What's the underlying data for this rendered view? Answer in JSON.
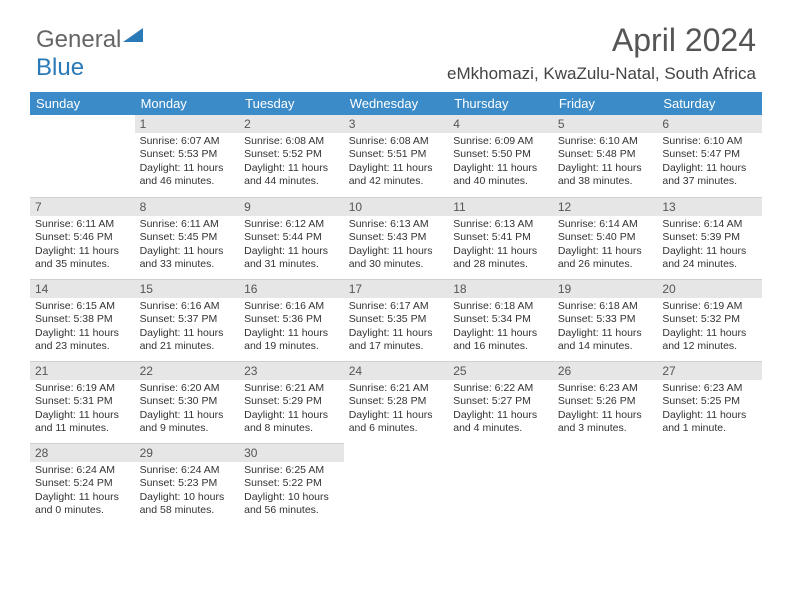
{
  "logo": {
    "text1": "General",
    "text2": "Blue"
  },
  "title": "April 2024",
  "location": "eMkhomazi, KwaZulu-Natal, South Africa",
  "weekday_headers": [
    "Sunday",
    "Monday",
    "Tuesday",
    "Wednesday",
    "Thursday",
    "Friday",
    "Saturday"
  ],
  "colors": {
    "header_bg": "#3b8bc9",
    "daynum_bg": "#e6e6e6",
    "logo_blue": "#2a7ab8"
  },
  "weeks": [
    [
      {
        "blank": true
      },
      {
        "n": "1",
        "sunrise": "Sunrise: 6:07 AM",
        "sunset": "Sunset: 5:53 PM",
        "daylight": "Daylight: 11 hours and 46 minutes."
      },
      {
        "n": "2",
        "sunrise": "Sunrise: 6:08 AM",
        "sunset": "Sunset: 5:52 PM",
        "daylight": "Daylight: 11 hours and 44 minutes."
      },
      {
        "n": "3",
        "sunrise": "Sunrise: 6:08 AM",
        "sunset": "Sunset: 5:51 PM",
        "daylight": "Daylight: 11 hours and 42 minutes."
      },
      {
        "n": "4",
        "sunrise": "Sunrise: 6:09 AM",
        "sunset": "Sunset: 5:50 PM",
        "daylight": "Daylight: 11 hours and 40 minutes."
      },
      {
        "n": "5",
        "sunrise": "Sunrise: 6:10 AM",
        "sunset": "Sunset: 5:48 PM",
        "daylight": "Daylight: 11 hours and 38 minutes."
      },
      {
        "n": "6",
        "sunrise": "Sunrise: 6:10 AM",
        "sunset": "Sunset: 5:47 PM",
        "daylight": "Daylight: 11 hours and 37 minutes."
      }
    ],
    [
      {
        "n": "7",
        "sunrise": "Sunrise: 6:11 AM",
        "sunset": "Sunset: 5:46 PM",
        "daylight": "Daylight: 11 hours and 35 minutes."
      },
      {
        "n": "8",
        "sunrise": "Sunrise: 6:11 AM",
        "sunset": "Sunset: 5:45 PM",
        "daylight": "Daylight: 11 hours and 33 minutes."
      },
      {
        "n": "9",
        "sunrise": "Sunrise: 6:12 AM",
        "sunset": "Sunset: 5:44 PM",
        "daylight": "Daylight: 11 hours and 31 minutes."
      },
      {
        "n": "10",
        "sunrise": "Sunrise: 6:13 AM",
        "sunset": "Sunset: 5:43 PM",
        "daylight": "Daylight: 11 hours and 30 minutes."
      },
      {
        "n": "11",
        "sunrise": "Sunrise: 6:13 AM",
        "sunset": "Sunset: 5:41 PM",
        "daylight": "Daylight: 11 hours and 28 minutes."
      },
      {
        "n": "12",
        "sunrise": "Sunrise: 6:14 AM",
        "sunset": "Sunset: 5:40 PM",
        "daylight": "Daylight: 11 hours and 26 minutes."
      },
      {
        "n": "13",
        "sunrise": "Sunrise: 6:14 AM",
        "sunset": "Sunset: 5:39 PM",
        "daylight": "Daylight: 11 hours and 24 minutes."
      }
    ],
    [
      {
        "n": "14",
        "sunrise": "Sunrise: 6:15 AM",
        "sunset": "Sunset: 5:38 PM",
        "daylight": "Daylight: 11 hours and 23 minutes."
      },
      {
        "n": "15",
        "sunrise": "Sunrise: 6:16 AM",
        "sunset": "Sunset: 5:37 PM",
        "daylight": "Daylight: 11 hours and 21 minutes."
      },
      {
        "n": "16",
        "sunrise": "Sunrise: 6:16 AM",
        "sunset": "Sunset: 5:36 PM",
        "daylight": "Daylight: 11 hours and 19 minutes."
      },
      {
        "n": "17",
        "sunrise": "Sunrise: 6:17 AM",
        "sunset": "Sunset: 5:35 PM",
        "daylight": "Daylight: 11 hours and 17 minutes."
      },
      {
        "n": "18",
        "sunrise": "Sunrise: 6:18 AM",
        "sunset": "Sunset: 5:34 PM",
        "daylight": "Daylight: 11 hours and 16 minutes."
      },
      {
        "n": "19",
        "sunrise": "Sunrise: 6:18 AM",
        "sunset": "Sunset: 5:33 PM",
        "daylight": "Daylight: 11 hours and 14 minutes."
      },
      {
        "n": "20",
        "sunrise": "Sunrise: 6:19 AM",
        "sunset": "Sunset: 5:32 PM",
        "daylight": "Daylight: 11 hours and 12 minutes."
      }
    ],
    [
      {
        "n": "21",
        "sunrise": "Sunrise: 6:19 AM",
        "sunset": "Sunset: 5:31 PM",
        "daylight": "Daylight: 11 hours and 11 minutes."
      },
      {
        "n": "22",
        "sunrise": "Sunrise: 6:20 AM",
        "sunset": "Sunset: 5:30 PM",
        "daylight": "Daylight: 11 hours and 9 minutes."
      },
      {
        "n": "23",
        "sunrise": "Sunrise: 6:21 AM",
        "sunset": "Sunset: 5:29 PM",
        "daylight": "Daylight: 11 hours and 8 minutes."
      },
      {
        "n": "24",
        "sunrise": "Sunrise: 6:21 AM",
        "sunset": "Sunset: 5:28 PM",
        "daylight": "Daylight: 11 hours and 6 minutes."
      },
      {
        "n": "25",
        "sunrise": "Sunrise: 6:22 AM",
        "sunset": "Sunset: 5:27 PM",
        "daylight": "Daylight: 11 hours and 4 minutes."
      },
      {
        "n": "26",
        "sunrise": "Sunrise: 6:23 AM",
        "sunset": "Sunset: 5:26 PM",
        "daylight": "Daylight: 11 hours and 3 minutes."
      },
      {
        "n": "27",
        "sunrise": "Sunrise: 6:23 AM",
        "sunset": "Sunset: 5:25 PM",
        "daylight": "Daylight: 11 hours and 1 minute."
      }
    ],
    [
      {
        "n": "28",
        "sunrise": "Sunrise: 6:24 AM",
        "sunset": "Sunset: 5:24 PM",
        "daylight": "Daylight: 11 hours and 0 minutes."
      },
      {
        "n": "29",
        "sunrise": "Sunrise: 6:24 AM",
        "sunset": "Sunset: 5:23 PM",
        "daylight": "Daylight: 10 hours and 58 minutes."
      },
      {
        "n": "30",
        "sunrise": "Sunrise: 6:25 AM",
        "sunset": "Sunset: 5:22 PM",
        "daylight": "Daylight: 10 hours and 56 minutes."
      },
      {
        "blank": true
      },
      {
        "blank": true
      },
      {
        "blank": true
      },
      {
        "blank": true
      }
    ]
  ]
}
